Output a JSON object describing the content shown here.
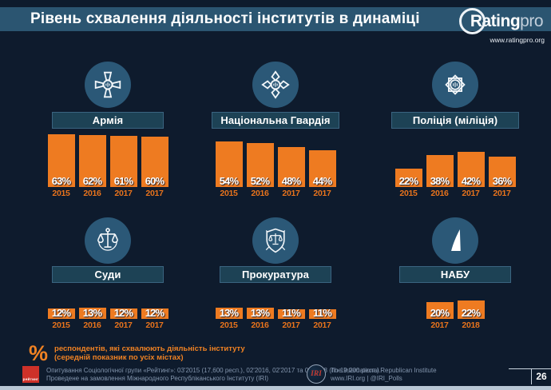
{
  "header": {
    "title": "Рівень схвалення діяльності інститутів в динаміці",
    "logo": {
      "brand_bold": "Rating",
      "brand_light": "pro",
      "url": "www.ratingpro.org"
    }
  },
  "chart_data": {
    "type": "bar",
    "unit": "percent",
    "title": "Рівень схвалення діяльності інститутів в динаміці",
    "note": "% респондентів, які схвалюють діяльність інституту (середній показник по усіх містах)",
    "ylim": [
      0,
      70
    ],
    "bar_color": "#ee7b21",
    "panels": [
      {
        "institution": "Армія",
        "icon": "army-emblem-icon",
        "categories": [
          "2015",
          "2016",
          "2017",
          "2017"
        ],
        "values": [
          63,
          62,
          61,
          60
        ]
      },
      {
        "institution": "Національна Гвардія",
        "icon": "national-guard-emblem-icon",
        "categories": [
          "2015",
          "2016",
          "2017",
          "2017"
        ],
        "values": [
          54,
          52,
          48,
          44
        ]
      },
      {
        "institution": "Поліція (міліція)",
        "icon": "police-badge-icon",
        "categories": [
          "2015",
          "2016",
          "2017",
          "2017"
        ],
        "values": [
          22,
          38,
          42,
          36
        ]
      },
      {
        "institution": "Суди",
        "icon": "themis-justice-icon",
        "categories": [
          "2015",
          "2016",
          "2017",
          "2017"
        ],
        "values": [
          12,
          13,
          12,
          12
        ]
      },
      {
        "institution": "Прокуратура",
        "icon": "prosecutor-shield-icon",
        "categories": [
          "2015",
          "2016",
          "2017",
          "2017"
        ],
        "values": [
          13,
          13,
          11,
          11
        ]
      },
      {
        "institution": "НАБУ",
        "icon": "nabu-logo-icon",
        "categories": [
          "2017",
          "2018"
        ],
        "values": [
          20,
          22
        ]
      }
    ]
  },
  "footnote": {
    "symbol": "%",
    "line1": "респондентів, які схвалюють діяльність інституту",
    "line2": "(середній показник по усіх містах)"
  },
  "footer": {
    "rating_logo_label": "рейтинг",
    "source_line1": "Опитування Соціологічної групи «Рейтинг»: 03'2015 (17,600 респ.), 02'2016, 02'2017 та 02'2018 (по 19,200 респ.).",
    "source_line2": "Проведене на замовлення Міжнародного Республіканського Інституту (IRI)",
    "iri_logo_label": "IRI",
    "iri_line1": "The International Republican Institute",
    "iri_line2": "www.IRI.org | @IRI_Polls",
    "page_number": "26"
  },
  "colors": {
    "background": "#0e1b2d",
    "title_bar": "#2b5571",
    "panel_header": "#1d4255",
    "icon_circle": "#2b5877",
    "bar_orange": "#ee7b21",
    "year_orange": "#e8731c",
    "footnote_orange": "#f08223",
    "footer_text": "#8395ad",
    "bottom_strip": "#b8c6d4"
  }
}
